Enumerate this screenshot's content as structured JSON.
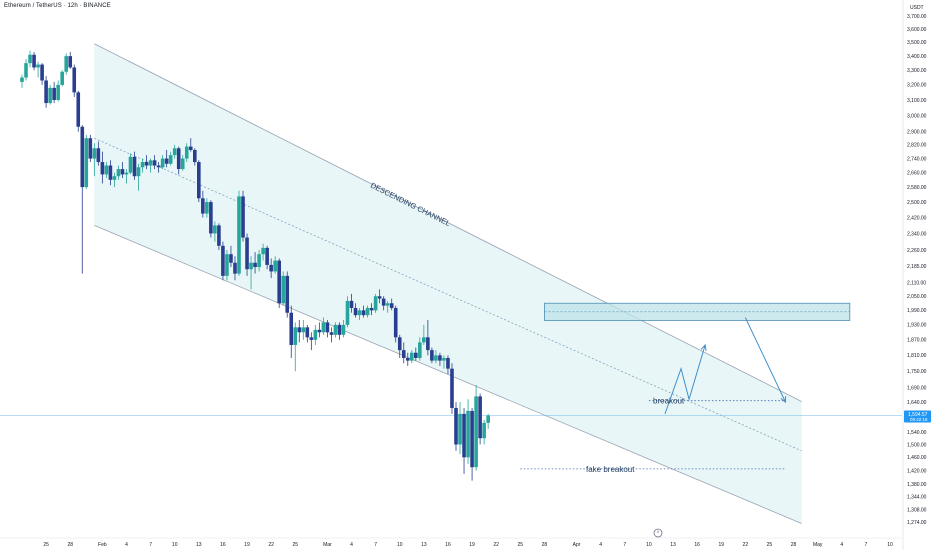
{
  "header": {
    "title": "Ethereum / TetherUS · 12h · BINANCE"
  },
  "axis": {
    "currency": "USDT",
    "price_ticks": [
      "3,700.00",
      "3,600.00",
      "3,500.00",
      "3,400.00",
      "3,300.00",
      "3,200.00",
      "3,100.00",
      "3,000.00",
      "2,900.00",
      "2,820.00",
      "2,740.00",
      "2,660.00",
      "2,580.00",
      "2,500.00",
      "2,420.00",
      "2,340.00",
      "2,260.00",
      "2,185.00",
      "2,110.00",
      "2,050.00",
      "1,990.00",
      "1,930.00",
      "1,870.00",
      "1,810.00",
      "1,750.00",
      "1,690.00",
      "1,640.00",
      "1,580.00",
      "1,540.00",
      "1,500.00",
      "1,460.00",
      "1,420.00",
      "1,380.00",
      "1,344.00",
      "1,308.00",
      "1,274.00"
    ],
    "time_ticks": [
      "25",
      "28",
      "Feb",
      "4",
      "7",
      "10",
      "13",
      "16",
      "19",
      "22",
      "25",
      "Mar",
      "4",
      "7",
      "10",
      "13",
      "16",
      "19",
      "22",
      "25",
      "28",
      "Apr",
      "4",
      "7",
      "10",
      "13",
      "16",
      "19",
      "22",
      "25",
      "28",
      "May",
      "4",
      "7",
      "10"
    ],
    "last_price": "1,594.57",
    "countdown": "09:42:18"
  },
  "annotations": {
    "channel": "DESCENDING CHANNEL",
    "breakout": "breakout",
    "fake_breakout": "fake breakout"
  },
  "colors": {
    "up": "#26a69a",
    "down": "#2a3e8f",
    "channel_fill": "#e6f5f6",
    "channel_line": "#9aa4b4",
    "zone_fill": "#bfe3ea",
    "zone_border": "#4e8fb5",
    "projection": "#3f8fc9",
    "price_label_bg": "#2196f3"
  },
  "chart_data": {
    "type": "candlestick",
    "symbol": "Ethereum / TetherUS",
    "interval": "12h",
    "exchange": "BINANCE",
    "x_start": "2025-01-22",
    "x_end": "2025-05-10",
    "y_axis_label": "USDT",
    "log_scale": true,
    "last_price": 1594.57,
    "candles": [
      {
        "o": 3220,
        "h": 3270,
        "l": 3180,
        "c": 3250
      },
      {
        "o": 3250,
        "h": 3380,
        "l": 3230,
        "c": 3350
      },
      {
        "o": 3350,
        "h": 3440,
        "l": 3320,
        "c": 3410
      },
      {
        "o": 3410,
        "h": 3430,
        "l": 3300,
        "c": 3320
      },
      {
        "o": 3320,
        "h": 3360,
        "l": 3250,
        "c": 3340
      },
      {
        "o": 3340,
        "h": 3350,
        "l": 3200,
        "c": 3230
      },
      {
        "o": 3230,
        "h": 3260,
        "l": 3050,
        "c": 3080
      },
      {
        "o": 3080,
        "h": 3200,
        "l": 3070,
        "c": 3180
      },
      {
        "o": 3180,
        "h": 3220,
        "l": 3080,
        "c": 3100
      },
      {
        "o": 3100,
        "h": 3230,
        "l": 3090,
        "c": 3200
      },
      {
        "o": 3200,
        "h": 3300,
        "l": 3190,
        "c": 3290
      },
      {
        "o": 3290,
        "h": 3420,
        "l": 3270,
        "c": 3400
      },
      {
        "o": 3400,
        "h": 3430,
        "l": 3310,
        "c": 3320
      },
      {
        "o": 3320,
        "h": 3340,
        "l": 3120,
        "c": 3150
      },
      {
        "o": 3150,
        "h": 3160,
        "l": 2900,
        "c": 2930
      },
      {
        "o": 2930,
        "h": 2940,
        "l": 2150,
        "c": 2580
      },
      {
        "o": 2580,
        "h": 2880,
        "l": 2570,
        "c": 2860
      },
      {
        "o": 2860,
        "h": 2880,
        "l": 2720,
        "c": 2740
      },
      {
        "o": 2740,
        "h": 2830,
        "l": 2640,
        "c": 2800
      },
      {
        "o": 2800,
        "h": 2840,
        "l": 2700,
        "c": 2720
      },
      {
        "o": 2720,
        "h": 2780,
        "l": 2600,
        "c": 2650
      },
      {
        "o": 2650,
        "h": 2720,
        "l": 2630,
        "c": 2700
      },
      {
        "o": 2700,
        "h": 2730,
        "l": 2590,
        "c": 2620
      },
      {
        "o": 2620,
        "h": 2660,
        "l": 2580,
        "c": 2640
      },
      {
        "o": 2640,
        "h": 2700,
        "l": 2620,
        "c": 2680
      },
      {
        "o": 2680,
        "h": 2720,
        "l": 2630,
        "c": 2650
      },
      {
        "o": 2650,
        "h": 2680,
        "l": 2600,
        "c": 2660
      },
      {
        "o": 2660,
        "h": 2770,
        "l": 2650,
        "c": 2750
      },
      {
        "o": 2750,
        "h": 2780,
        "l": 2620,
        "c": 2640
      },
      {
        "o": 2640,
        "h": 2710,
        "l": 2560,
        "c": 2690
      },
      {
        "o": 2690,
        "h": 2740,
        "l": 2660,
        "c": 2720
      },
      {
        "o": 2720,
        "h": 2760,
        "l": 2680,
        "c": 2700
      },
      {
        "o": 2700,
        "h": 2740,
        "l": 2660,
        "c": 2730
      },
      {
        "o": 2730,
        "h": 2760,
        "l": 2680,
        "c": 2700
      },
      {
        "o": 2700,
        "h": 2720,
        "l": 2660,
        "c": 2690
      },
      {
        "o": 2690,
        "h": 2760,
        "l": 2680,
        "c": 2740
      },
      {
        "o": 2740,
        "h": 2790,
        "l": 2690,
        "c": 2710
      },
      {
        "o": 2710,
        "h": 2780,
        "l": 2700,
        "c": 2760
      },
      {
        "o": 2760,
        "h": 2820,
        "l": 2740,
        "c": 2800
      },
      {
        "o": 2800,
        "h": 2810,
        "l": 2650,
        "c": 2680
      },
      {
        "o": 2680,
        "h": 2760,
        "l": 2670,
        "c": 2740
      },
      {
        "o": 2740,
        "h": 2830,
        "l": 2720,
        "c": 2810
      },
      {
        "o": 2810,
        "h": 2860,
        "l": 2780,
        "c": 2790
      },
      {
        "o": 2790,
        "h": 2800,
        "l": 2700,
        "c": 2720
      },
      {
        "o": 2720,
        "h": 2730,
        "l": 2500,
        "c": 2520
      },
      {
        "o": 2520,
        "h": 2560,
        "l": 2420,
        "c": 2440
      },
      {
        "o": 2440,
        "h": 2520,
        "l": 2420,
        "c": 2500
      },
      {
        "o": 2500,
        "h": 2510,
        "l": 2320,
        "c": 2340
      },
      {
        "o": 2340,
        "h": 2400,
        "l": 2300,
        "c": 2380
      },
      {
        "o": 2380,
        "h": 2390,
        "l": 2260,
        "c": 2280
      },
      {
        "o": 2280,
        "h": 2300,
        "l": 2120,
        "c": 2140
      },
      {
        "o": 2140,
        "h": 2260,
        "l": 2120,
        "c": 2240
      },
      {
        "o": 2240,
        "h": 2280,
        "l": 2180,
        "c": 2200
      },
      {
        "o": 2200,
        "h": 2230,
        "l": 2120,
        "c": 2150
      },
      {
        "o": 2150,
        "h": 2560,
        "l": 2140,
        "c": 2530
      },
      {
        "o": 2530,
        "h": 2560,
        "l": 2300,
        "c": 2320
      },
      {
        "o": 2320,
        "h": 2340,
        "l": 2140,
        "c": 2170
      },
      {
        "o": 2170,
        "h": 2230,
        "l": 2080,
        "c": 2200
      },
      {
        "o": 2200,
        "h": 2250,
        "l": 2150,
        "c": 2180
      },
      {
        "o": 2180,
        "h": 2260,
        "l": 2160,
        "c": 2240
      },
      {
        "o": 2240,
        "h": 2290,
        "l": 2210,
        "c": 2270
      },
      {
        "o": 2270,
        "h": 2280,
        "l": 2170,
        "c": 2190
      },
      {
        "o": 2190,
        "h": 2220,
        "l": 2130,
        "c": 2160
      },
      {
        "o": 2160,
        "h": 2230,
        "l": 2150,
        "c": 2210
      },
      {
        "o": 2210,
        "h": 2220,
        "l": 2000,
        "c": 2020
      },
      {
        "o": 2020,
        "h": 2160,
        "l": 2010,
        "c": 2140
      },
      {
        "o": 2140,
        "h": 2160,
        "l": 1960,
        "c": 1980
      },
      {
        "o": 1980,
        "h": 2010,
        "l": 1800,
        "c": 1850
      },
      {
        "o": 1850,
        "h": 1940,
        "l": 1750,
        "c": 1920
      },
      {
        "o": 1920,
        "h": 1950,
        "l": 1860,
        "c": 1900
      },
      {
        "o": 1900,
        "h": 1950,
        "l": 1870,
        "c": 1920
      },
      {
        "o": 1920,
        "h": 1930,
        "l": 1860,
        "c": 1880
      },
      {
        "o": 1880,
        "h": 1900,
        "l": 1830,
        "c": 1870
      },
      {
        "o": 1870,
        "h": 1930,
        "l": 1850,
        "c": 1910
      },
      {
        "o": 1910,
        "h": 1940,
        "l": 1880,
        "c": 1900
      },
      {
        "o": 1900,
        "h": 1960,
        "l": 1890,
        "c": 1940
      },
      {
        "o": 1940,
        "h": 1950,
        "l": 1880,
        "c": 1900
      },
      {
        "o": 1900,
        "h": 1920,
        "l": 1860,
        "c": 1890
      },
      {
        "o": 1890,
        "h": 1940,
        "l": 1880,
        "c": 1930
      },
      {
        "o": 1930,
        "h": 1940,
        "l": 1870,
        "c": 1890
      },
      {
        "o": 1890,
        "h": 1950,
        "l": 1880,
        "c": 1930
      },
      {
        "o": 1930,
        "h": 2050,
        "l": 1920,
        "c": 2030
      },
      {
        "o": 2030,
        "h": 2060,
        "l": 1980,
        "c": 2000
      },
      {
        "o": 2000,
        "h": 2020,
        "l": 1960,
        "c": 1970
      },
      {
        "o": 1970,
        "h": 2000,
        "l": 1950,
        "c": 1990
      },
      {
        "o": 1990,
        "h": 2010,
        "l": 1960,
        "c": 1970
      },
      {
        "o": 1970,
        "h": 2010,
        "l": 1960,
        "c": 2000
      },
      {
        "o": 2000,
        "h": 2020,
        "l": 1970,
        "c": 1990
      },
      {
        "o": 1990,
        "h": 2060,
        "l": 1980,
        "c": 2050
      },
      {
        "o": 2050,
        "h": 2080,
        "l": 2020,
        "c": 2040
      },
      {
        "o": 2040,
        "h": 2050,
        "l": 1990,
        "c": 2010
      },
      {
        "o": 2010,
        "h": 2030,
        "l": 1980,
        "c": 2020
      },
      {
        "o": 2020,
        "h": 2040,
        "l": 1990,
        "c": 2000
      },
      {
        "o": 2000,
        "h": 2010,
        "l": 1860,
        "c": 1880
      },
      {
        "o": 1880,
        "h": 1890,
        "l": 1800,
        "c": 1830
      },
      {
        "o": 1830,
        "h": 1860,
        "l": 1780,
        "c": 1800
      },
      {
        "o": 1800,
        "h": 1820,
        "l": 1770,
        "c": 1790
      },
      {
        "o": 1790,
        "h": 1830,
        "l": 1780,
        "c": 1820
      },
      {
        "o": 1820,
        "h": 1840,
        "l": 1790,
        "c": 1800
      },
      {
        "o": 1800,
        "h": 1880,
        "l": 1790,
        "c": 1860
      },
      {
        "o": 1860,
        "h": 1930,
        "l": 1850,
        "c": 1880
      },
      {
        "o": 1880,
        "h": 1950,
        "l": 1810,
        "c": 1830
      },
      {
        "o": 1830,
        "h": 1840,
        "l": 1780,
        "c": 1790
      },
      {
        "o": 1790,
        "h": 1830,
        "l": 1780,
        "c": 1810
      },
      {
        "o": 1810,
        "h": 1820,
        "l": 1770,
        "c": 1790
      },
      {
        "o": 1790,
        "h": 1810,
        "l": 1760,
        "c": 1800
      },
      {
        "o": 1800,
        "h": 1810,
        "l": 1740,
        "c": 1760
      },
      {
        "o": 1760,
        "h": 1780,
        "l": 1600,
        "c": 1620
      },
      {
        "o": 1620,
        "h": 1640,
        "l": 1480,
        "c": 1500
      },
      {
        "o": 1500,
        "h": 1640,
        "l": 1470,
        "c": 1600
      },
      {
        "o": 1600,
        "h": 1620,
        "l": 1410,
        "c": 1460
      },
      {
        "o": 1460,
        "h": 1650,
        "l": 1440,
        "c": 1610
      },
      {
        "o": 1610,
        "h": 1620,
        "l": 1390,
        "c": 1430
      },
      {
        "o": 1430,
        "h": 1700,
        "l": 1420,
        "c": 1660
      },
      {
        "o": 1660,
        "h": 1670,
        "l": 1500,
        "c": 1520
      },
      {
        "o": 1520,
        "h": 1580,
        "l": 1500,
        "c": 1570
      },
      {
        "o": 1570,
        "h": 1600,
        "l": 1550,
        "c": 1594.57
      }
    ],
    "descending_channel": {
      "upper": [
        [
          "2025-01-31",
          3490
        ],
        [
          "2025-04-17",
          1820
        ]
      ],
      "middle": [
        [
          "2025-01-31",
          2860
        ],
        [
          "2025-04-29",
          1480
        ]
      ],
      "lower": [
        [
          "2025-01-31",
          2380
        ],
        [
          "2025-04-29",
          1270
        ]
      ]
    },
    "resistance_zone": {
      "from": "2025-03-28",
      "to": "2025-05-05",
      "top": 2020,
      "bottom": 1948
    },
    "breakout_level": 1645,
    "fake_breakout_level": 1425,
    "projection": [
      [
        "2025-04-12",
        1600
      ],
      [
        "2025-04-14",
        1760
      ],
      [
        "2025-04-15",
        1650
      ],
      [
        "2025-04-17",
        1850
      ]
    ],
    "down_arrow": [
      [
        "2025-04-22",
        1960
      ],
      [
        "2025-04-27",
        1640
      ]
    ]
  }
}
